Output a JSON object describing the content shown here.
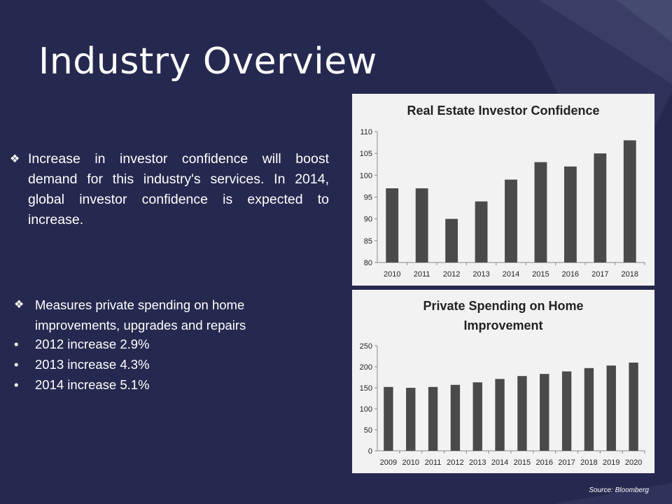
{
  "slide": {
    "title": "Industry Overview",
    "bullet_mark": "❖",
    "paragraph": "Increase in investor confidence will boost demand for this industry's services. In 2014, global investor confidence is expected to increase.",
    "spending_heading": "Measures private spending on home improvements, upgrades and repairs",
    "sub_bullet_mark": "•",
    "sub_bullets": [
      "2012 increase 2.9%",
      "2013 increase 4.3%",
      "2014 increase 5.1%"
    ],
    "source": "Source: Bloomberg"
  },
  "colors": {
    "background": "#26294f",
    "bar": "#4a4a4a",
    "chart_bg": "#f2f2f2"
  },
  "chart_data": [
    {
      "type": "bar",
      "title": "Real Estate Investor Confidence",
      "categories": [
        "2010",
        "2011",
        "2012",
        "2013",
        "2014",
        "2015",
        "2016",
        "2017",
        "2018"
      ],
      "values": [
        97,
        97,
        90,
        94,
        99,
        103,
        102,
        105,
        108
      ],
      "ylim": [
        80,
        110
      ],
      "yticks": [
        80,
        85,
        90,
        95,
        100,
        105,
        110
      ],
      "grid": false
    },
    {
      "type": "bar",
      "title": "Private Spending on Home Improvement",
      "title_lines": [
        "Private Spending on Home",
        "Improvement"
      ],
      "categories": [
        "2009",
        "2010",
        "2011",
        "2012",
        "2013",
        "2014",
        "2015",
        "2016",
        "2017",
        "2018",
        "2019",
        "2020"
      ],
      "values": [
        152,
        150,
        152,
        157,
        163,
        171,
        178,
        183,
        189,
        197,
        203,
        210
      ],
      "ylim": [
        0,
        250
      ],
      "yticks": [
        0,
        50,
        100,
        150,
        200,
        250
      ],
      "grid": false
    }
  ]
}
